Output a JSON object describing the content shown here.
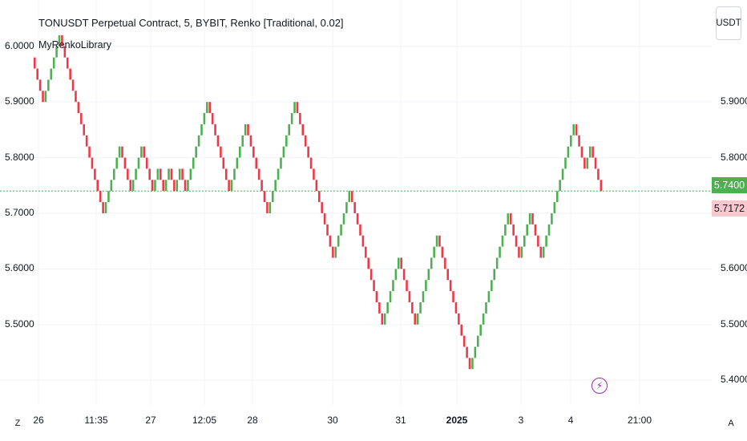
{
  "header": {
    "title": "TONUSDT Perpetual Contract, 5, BYBIT, Renko [Traditional, 0.02]",
    "indicator": "MyRenkoLibrary",
    "currency_button": "USDT"
  },
  "price_badges": {
    "last": "5.7400",
    "prev": "5.7172"
  },
  "corner_labels": {
    "left": "Z",
    "right": "A"
  },
  "alert_icon": "lightning-bolt-icon",
  "colors": {
    "up": "#4caf50",
    "down": "#f23645",
    "grid": "#f0f3fa",
    "price_line": "#4caf50",
    "alert": "#9c27b0"
  },
  "chart_data": {
    "type": "renko",
    "brick_size": 0.02,
    "title": "TONUSDT Perpetual Contract, 5, BYBIT, Renko [Traditional, 0.02]",
    "left_axis_ticks": [
      "6.0000",
      "5.9000",
      "5.8000",
      "5.7000",
      "5.6000",
      "5.5000"
    ],
    "right_axis_ticks": [
      "5.9000",
      "5.8000",
      "5.7000",
      "5.6000",
      "5.5000",
      "5.4000"
    ],
    "x_tick_labels": [
      "26",
      "11:35",
      "27",
      "12:05",
      "28",
      "30",
      "31",
      "2025",
      "3",
      "4",
      "21:00"
    ],
    "last_price": 5.74,
    "prev_price": 5.7172,
    "path": [
      5.98,
      5.94,
      5.9,
      5.94,
      5.98,
      6.02,
      5.98,
      5.94,
      5.9,
      5.86,
      5.82,
      5.78,
      5.74,
      5.7,
      5.74,
      5.78,
      5.82,
      5.78,
      5.74,
      5.78,
      5.82,
      5.78,
      5.74,
      5.78,
      5.74,
      5.78,
      5.74,
      5.78,
      5.74,
      5.78,
      5.82,
      5.86,
      5.9,
      5.86,
      5.82,
      5.78,
      5.74,
      5.78,
      5.82,
      5.86,
      5.82,
      5.78,
      5.74,
      5.7,
      5.74,
      5.78,
      5.82,
      5.86,
      5.9,
      5.86,
      5.82,
      5.78,
      5.74,
      5.7,
      5.66,
      5.62,
      5.66,
      5.7,
      5.74,
      5.7,
      5.66,
      5.62,
      5.58,
      5.54,
      5.5,
      5.54,
      5.58,
      5.62,
      5.58,
      5.54,
      5.5,
      5.54,
      5.58,
      5.62,
      5.66,
      5.62,
      5.58,
      5.54,
      5.5,
      5.46,
      5.42,
      5.46,
      5.5,
      5.54,
      5.58,
      5.62,
      5.66,
      5.7,
      5.66,
      5.62,
      5.66,
      5.7,
      5.66,
      5.62,
      5.66,
      5.7,
      5.74,
      5.78,
      5.82,
      5.86,
      5.82,
      5.78,
      5.82,
      5.78,
      5.74
    ],
    "y_domain": [
      5.37,
      6.04
    ]
  }
}
